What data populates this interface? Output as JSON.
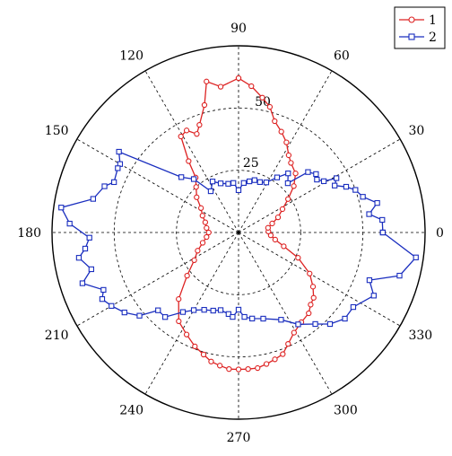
{
  "chart_data": {
    "type": "line",
    "subtype": "polar",
    "angle_unit": "degrees",
    "radial_ticks": [
      25,
      50
    ],
    "radial_max": 75,
    "angle_ticks": [
      {
        "angle": 0,
        "label": "0"
      },
      {
        "angle": 30,
        "label": "30"
      },
      {
        "angle": 60,
        "label": "60"
      },
      {
        "angle": 90,
        "label": "90"
      },
      {
        "angle": 120,
        "label": "120"
      },
      {
        "angle": 150,
        "label": "150"
      },
      {
        "angle": 180,
        "label": "180"
      },
      {
        "angle": 210,
        "label": "210"
      },
      {
        "angle": 240,
        "label": "240"
      },
      {
        "angle": 270,
        "label": "270"
      },
      {
        "angle": 300,
        "label": "300"
      },
      {
        "angle": 330,
        "label": "330"
      }
    ],
    "grid": true,
    "legend_position": "top-right",
    "series": [
      {
        "name": "1",
        "color": "#dd2222",
        "marker": "circle",
        "points": [
          [
            90,
            62
          ],
          [
            97,
            59
          ],
          [
            102,
            62
          ],
          [
            105,
            53
          ],
          [
            110,
            46
          ],
          [
            113,
            43
          ],
          [
            117,
            46
          ],
          [
            121,
            45
          ],
          [
            125,
            35
          ],
          [
            128,
            28
          ],
          [
            133,
            25
          ],
          [
            140,
            22
          ],
          [
            147,
            18
          ],
          [
            155,
            16
          ],
          [
            163,
            14
          ],
          [
            172,
            13
          ],
          [
            180,
            12
          ],
          [
            188,
            13
          ],
          [
            196,
            15
          ],
          [
            204,
            18
          ],
          [
            212,
            21
          ],
          [
            220,
            27
          ],
          [
            228,
            36
          ],
          [
            236,
            43
          ],
          [
            243,
            46
          ],
          [
            249,
            49
          ],
          [
            254,
            51
          ],
          [
            258,
            53
          ],
          [
            262,
            54
          ],
          [
            266,
            55
          ],
          [
            270,
            55
          ],
          [
            274,
            55
          ],
          [
            278,
            55
          ],
          [
            282,
            54
          ],
          [
            286,
            53
          ],
          [
            290,
            52
          ],
          [
            294,
            49
          ],
          [
            299,
            46
          ],
          [
            305,
            44
          ],
          [
            311,
            43
          ],
          [
            315,
            41
          ],
          [
            319,
            40
          ],
          [
            324,
            37
          ],
          [
            330,
            33
          ],
          [
            337,
            26
          ],
          [
            343,
            19
          ],
          [
            349,
            15
          ],
          [
            355,
            13
          ],
          [
            2,
            12
          ],
          [
            9,
            12
          ],
          [
            15,
            14
          ],
          [
            21,
            17
          ],
          [
            28,
            20
          ],
          [
            34,
            24
          ],
          [
            40,
            29
          ],
          [
            46,
            33
          ],
          [
            53,
            35
          ],
          [
            57,
            37
          ],
          [
            62,
            41
          ],
          [
            67,
            44
          ],
          [
            72,
            47
          ],
          [
            76,
            52
          ],
          [
            80,
            55
          ],
          [
            85,
            59
          ],
          [
            90,
            62
          ]
        ]
      },
      {
        "name": "2",
        "color": "#1a2ebf",
        "marker": "square",
        "points": [
          [
            0,
            58
          ],
          [
            5,
            58
          ],
          [
            8,
            53
          ],
          [
            12,
            57
          ],
          [
            16,
            52
          ],
          [
            20,
            50
          ],
          [
            23,
            47
          ],
          [
            26,
            43
          ],
          [
            29,
            45
          ],
          [
            31,
            40
          ],
          [
            34,
            38
          ],
          [
            37,
            39
          ],
          [
            41,
            37
          ],
          [
            45,
            28
          ],
          [
            50,
            31
          ],
          [
            55,
            27
          ],
          [
            61,
            23
          ],
          [
            67,
            22
          ],
          [
            73,
            22
          ],
          [
            78,
            21
          ],
          [
            84,
            20
          ],
          [
            90,
            17
          ],
          [
            96,
            20
          ],
          [
            102,
            20
          ],
          [
            110,
            21
          ],
          [
            117,
            23
          ],
          [
            124,
            20
          ],
          [
            130,
            28
          ],
          [
            136,
            32
          ],
          [
            146,
            58
          ],
          [
            150,
            55
          ],
          [
            152,
            55
          ],
          [
            158,
            54
          ],
          [
            161,
            57
          ],
          [
            167,
            60
          ],
          [
            172,
            72
          ],
          [
            177,
            68
          ],
          [
            182,
            60
          ],
          [
            186,
            62
          ],
          [
            189,
            65
          ],
          [
            194,
            61
          ],
          [
            198,
            66
          ],
          [
            203,
            59
          ],
          [
            206,
            61
          ],
          [
            210,
            59
          ],
          [
            215,
            56
          ],
          [
            220,
            52
          ],
          [
            224,
            45
          ],
          [
            229,
            45
          ],
          [
            235,
            39
          ],
          [
            240,
            36
          ],
          [
            246,
            34
          ],
          [
            252,
            33
          ],
          [
            257,
            32
          ],
          [
            263,
            33
          ],
          [
            266,
            34
          ],
          [
            270,
            31
          ],
          [
            274,
            34
          ],
          [
            279,
            35
          ],
          [
            286,
            36
          ],
          [
            296,
            39
          ],
          [
            303,
            44
          ],
          [
            310,
            48
          ],
          [
            315,
            52
          ],
          [
            321,
            55
          ],
          [
            327,
            55
          ],
          [
            335,
            60
          ],
          [
            340,
            56
          ],
          [
            345,
            67
          ],
          [
            352,
            72
          ],
          [
            360,
            58
          ]
        ]
      }
    ]
  }
}
